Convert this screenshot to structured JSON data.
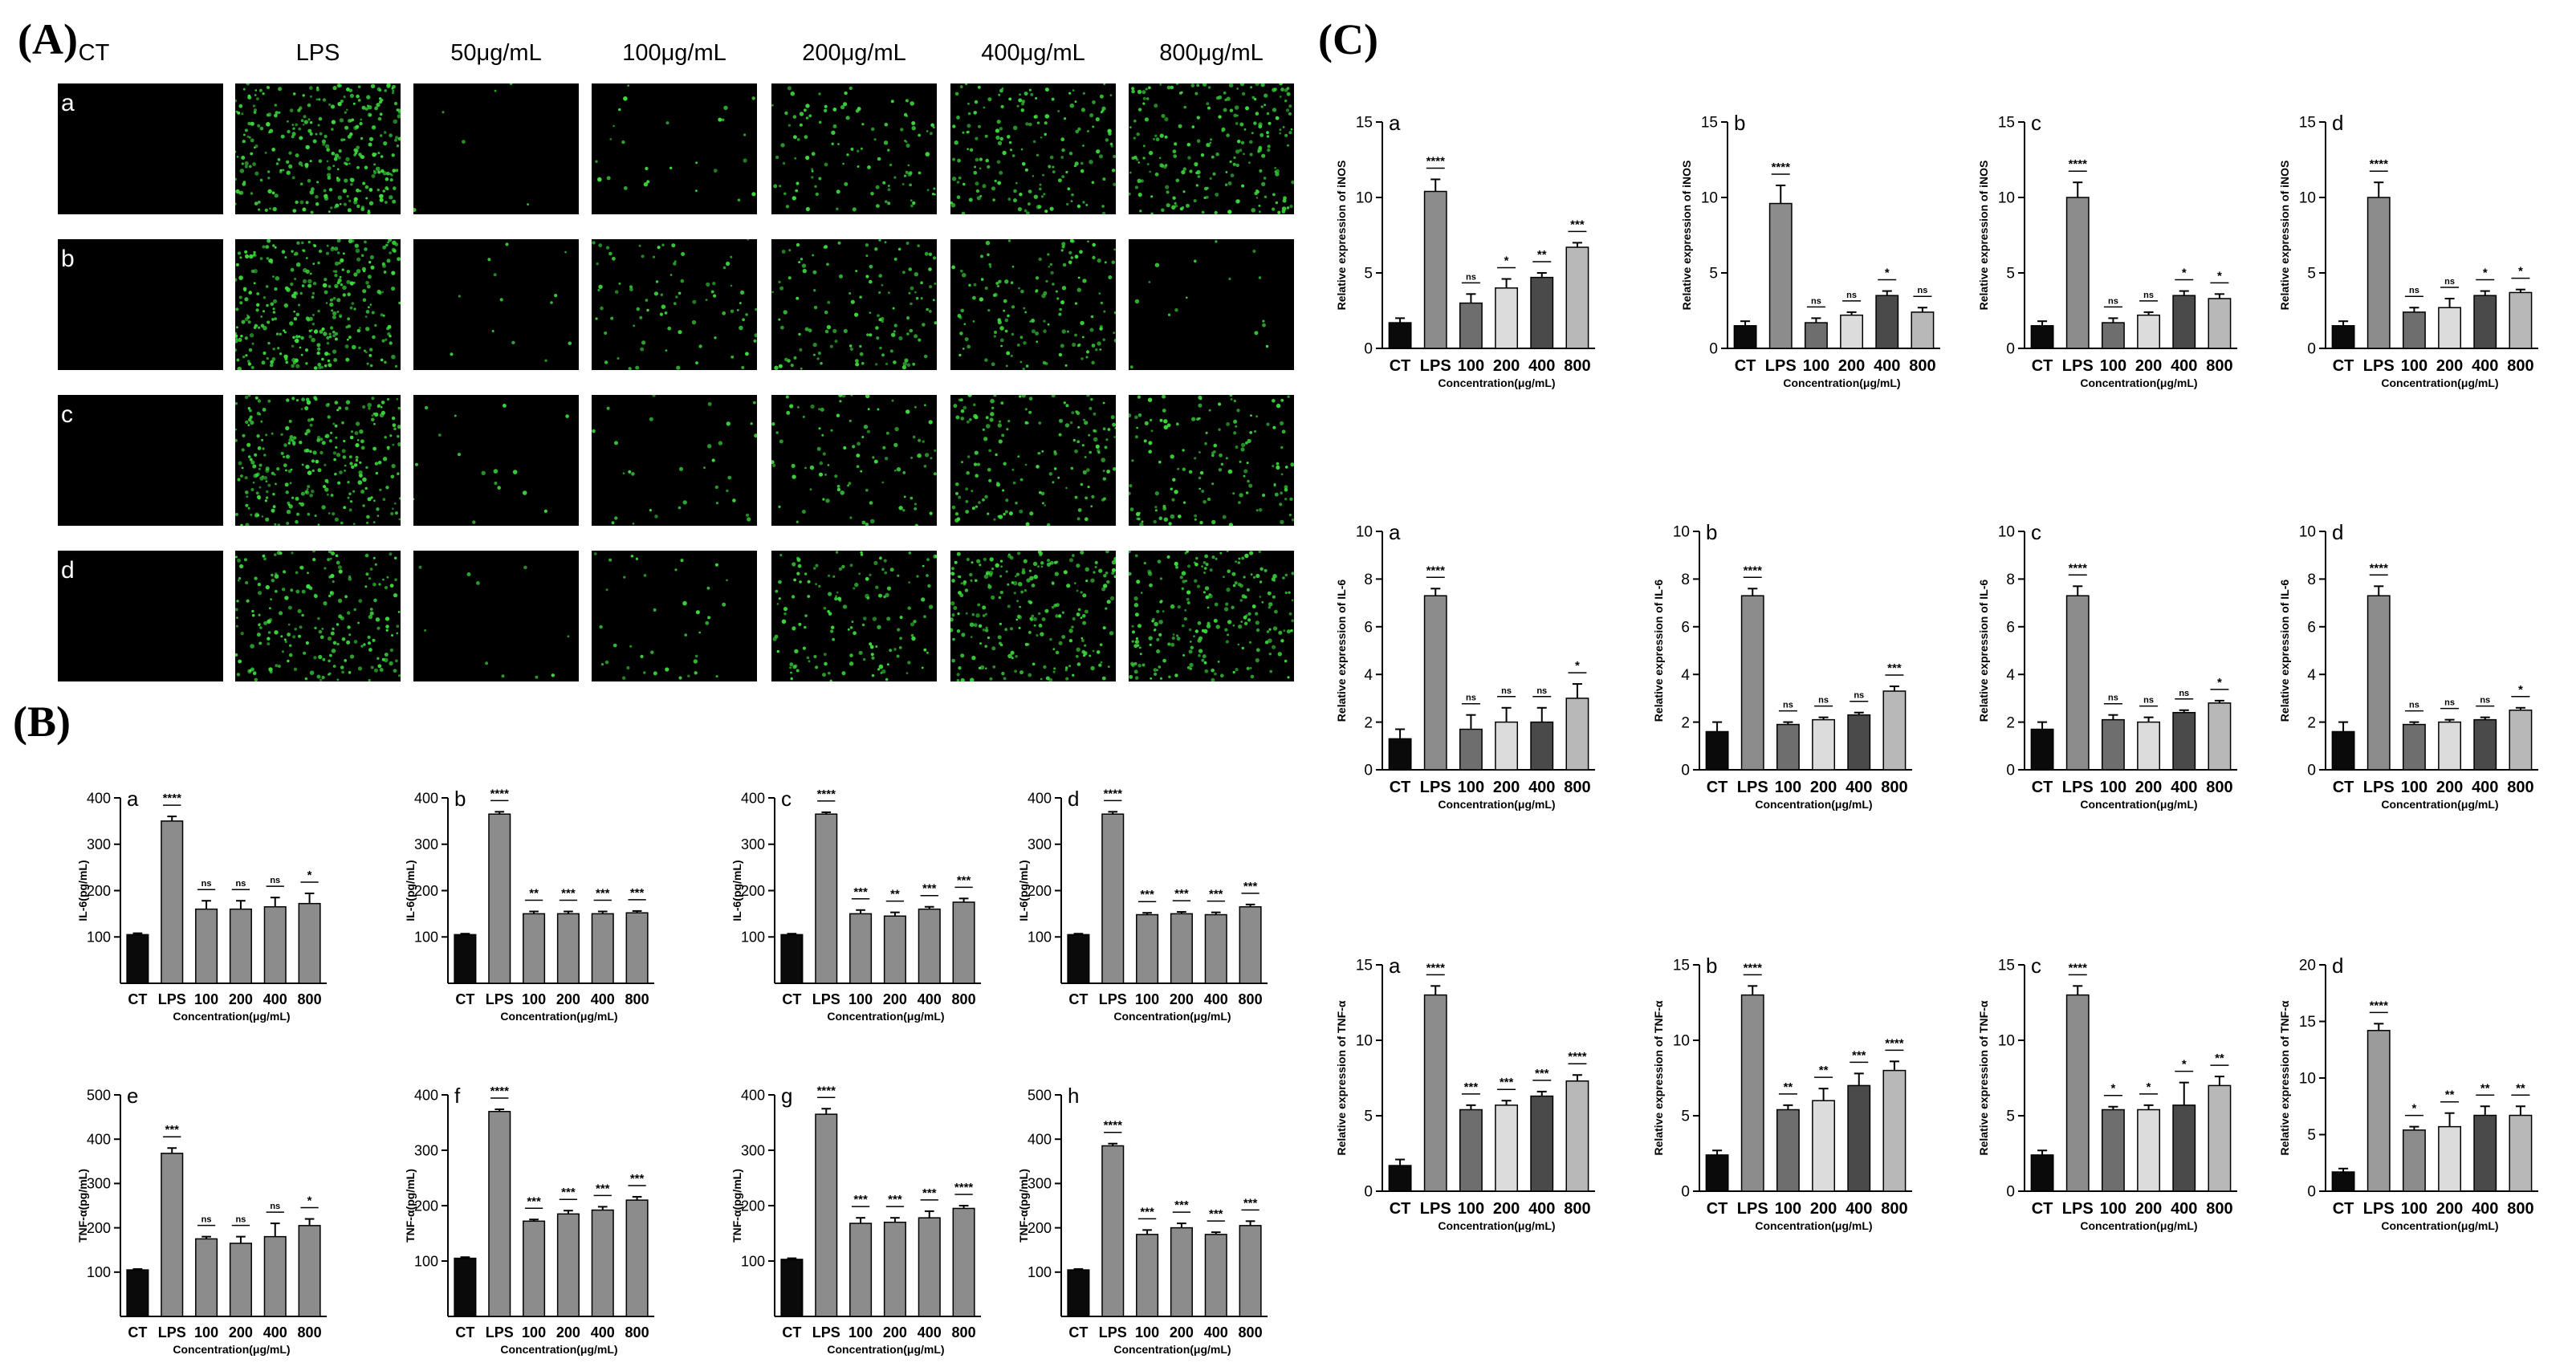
{
  "panels": {
    "A": "(A)",
    "B": "(B)",
    "C": "(C)"
  },
  "micrograph": {
    "columns": [
      "CT",
      "LPS",
      "50μg/mL",
      "100μg/mL",
      "200μg/mL",
      "400μg/mL",
      "800μg/mL"
    ],
    "rows": [
      "a",
      "b",
      "c",
      "d"
    ],
    "dot_color": "#3ddc3d",
    "tile_color": "#000000",
    "density": [
      [
        0,
        1.0,
        0.02,
        0.08,
        0.35,
        0.55,
        0.7
      ],
      [
        0,
        1.0,
        0.04,
        0.25,
        0.4,
        0.45,
        0.05
      ],
      [
        0,
        0.9,
        0.05,
        0.1,
        0.3,
        0.5,
        0.45
      ],
      [
        0,
        0.65,
        0.03,
        0.12,
        0.45,
        0.75,
        0.7
      ]
    ]
  },
  "categories": [
    "CT",
    "LPS",
    "100",
    "200",
    "400",
    "800"
  ],
  "bar_colors": {
    "black": "#0a0a0a",
    "dark": "#6e6e6e",
    "gray": "#8c8c8c",
    "mid": "#a6a6a6",
    "light": "#dcdcdc",
    "charcoal": "#4a4a4a",
    "steel": "#9b9b9b",
    "silver": "#b8b8b8"
  },
  "chart_data": [
    {
      "type": "bar",
      "panel": "B",
      "letter": "a",
      "ylabel": "IL-6(pg/mL)",
      "xlabel": "Concentration(μg/mL)",
      "ylim": [
        0,
        400
      ],
      "yticks": [
        100,
        200,
        300,
        400
      ],
      "values": [
        105,
        350,
        160,
        160,
        165,
        172
      ],
      "errors": [
        3,
        10,
        18,
        18,
        20,
        22
      ],
      "sig": [
        "",
        "****",
        "ns",
        "ns",
        "ns",
        "*"
      ],
      "colors": [
        "black",
        "gray",
        "gray",
        "gray",
        "gray",
        "gray"
      ]
    },
    {
      "type": "bar",
      "panel": "B",
      "letter": "b",
      "ylabel": "IL-6(pg/mL)",
      "xlabel": "Concentration(μg/mL)",
      "ylim": [
        0,
        400
      ],
      "yticks": [
        100,
        200,
        300,
        400
      ],
      "values": [
        105,
        365,
        150,
        150,
        150,
        152
      ],
      "errors": [
        2,
        5,
        5,
        5,
        5,
        4
      ],
      "sig": [
        "",
        "****",
        "**",
        "***",
        "***",
        "***"
      ],
      "colors": [
        "black",
        "gray",
        "gray",
        "gray",
        "gray",
        "gray"
      ]
    },
    {
      "type": "bar",
      "panel": "B",
      "letter": "c",
      "ylabel": "IL-6(pg/mL)",
      "xlabel": "Concentration(μg/mL)",
      "ylim": [
        0,
        400
      ],
      "yticks": [
        100,
        200,
        300,
        400
      ],
      "values": [
        105,
        365,
        150,
        145,
        160,
        175
      ],
      "errors": [
        2,
        4,
        8,
        8,
        5,
        8
      ],
      "sig": [
        "",
        "****",
        "***",
        "**",
        "***",
        "***"
      ],
      "colors": [
        "black",
        "gray",
        "gray",
        "gray",
        "gray",
        "gray"
      ]
    },
    {
      "type": "bar",
      "panel": "B",
      "letter": "d",
      "ylabel": "IL-6(pg/mL)",
      "xlabel": "Concentration(μg/mL)",
      "ylim": [
        0,
        400
      ],
      "yticks": [
        100,
        200,
        300,
        400
      ],
      "values": [
        105,
        365,
        148,
        150,
        148,
        165
      ],
      "errors": [
        2,
        5,
        4,
        4,
        5,
        5
      ],
      "sig": [
        "",
        "****",
        "***",
        "***",
        "***",
        "***"
      ],
      "colors": [
        "black",
        "gray",
        "gray",
        "gray",
        "gray",
        "gray"
      ]
    },
    {
      "type": "bar",
      "panel": "B",
      "letter": "e",
      "ylabel": "TNF-α(pg/mL)",
      "xlabel": "Concentration(μg/mL)",
      "ylim": [
        0,
        500
      ],
      "yticks": [
        100,
        200,
        300,
        400,
        500
      ],
      "values": [
        105,
        368,
        175,
        165,
        180,
        205
      ],
      "errors": [
        2,
        12,
        5,
        15,
        30,
        15
      ],
      "sig": [
        "",
        "***",
        "ns",
        "ns",
        "ns",
        "*"
      ],
      "colors": [
        "black",
        "gray",
        "gray",
        "gray",
        "gray",
        "gray"
      ]
    },
    {
      "type": "bar",
      "panel": "B",
      "letter": "f",
      "ylabel": "TNF-α(pg/mL)",
      "xlabel": "Concentration(μg/mL)",
      "ylim": [
        0,
        400
      ],
      "yticks": [
        100,
        200,
        300,
        400
      ],
      "values": [
        105,
        370,
        172,
        185,
        192,
        210
      ],
      "errors": [
        2,
        4,
        3,
        6,
        6,
        6
      ],
      "sig": [
        "",
        "****",
        "***",
        "***",
        "***",
        "***"
      ],
      "colors": [
        "black",
        "gray",
        "gray",
        "gray",
        "gray",
        "gray"
      ]
    },
    {
      "type": "bar",
      "panel": "B",
      "letter": "g",
      "ylabel": "TNF-α(pg/mL)",
      "xlabel": "Concentration(μg/mL)",
      "ylim": [
        0,
        400
      ],
      "yticks": [
        100,
        200,
        300,
        400
      ],
      "values": [
        103,
        365,
        168,
        170,
        178,
        195
      ],
      "errors": [
        2,
        10,
        10,
        8,
        12,
        5
      ],
      "sig": [
        "",
        "****",
        "***",
        "***",
        "***",
        "****"
      ],
      "colors": [
        "black",
        "gray",
        "gray",
        "gray",
        "gray",
        "gray"
      ]
    },
    {
      "type": "bar",
      "panel": "B",
      "letter": "h",
      "ylabel": "TNF-α(pg/mL)",
      "xlabel": "Concentration(μg/mL)",
      "ylim": [
        0,
        500
      ],
      "yticks": [
        100,
        200,
        300,
        400,
        500
      ],
      "values": [
        105,
        385,
        185,
        200,
        185,
        205
      ],
      "errors": [
        2,
        5,
        10,
        10,
        5,
        10
      ],
      "sig": [
        "",
        "****",
        "***",
        "***",
        "***",
        "***"
      ],
      "colors": [
        "black",
        "gray",
        "gray",
        "gray",
        "gray",
        "gray"
      ]
    },
    {
      "type": "bar",
      "panel": "C",
      "letter": "a",
      "ylabel": "Relative expression of iNOS",
      "xlabel": "Concentration(μg/mL)",
      "ylim": [
        0,
        15
      ],
      "yticks": [
        0,
        5,
        10,
        15
      ],
      "values": [
        1.7,
        10.4,
        3.0,
        4.0,
        4.7,
        6.7
      ],
      "errors": [
        0.3,
        0.8,
        0.6,
        0.6,
        0.3,
        0.3
      ],
      "sig": [
        "",
        "****",
        "ns",
        "*",
        "**",
        "***"
      ],
      "colors": [
        "black",
        "gray",
        "dark",
        "light",
        "charcoal",
        "silver"
      ]
    },
    {
      "type": "bar",
      "panel": "C",
      "letter": "b",
      "ylabel": "Relative expression of iNOS",
      "xlabel": "Concentration(μg/mL)",
      "ylim": [
        0,
        15
      ],
      "yticks": [
        0,
        5,
        10,
        15
      ],
      "values": [
        1.5,
        9.6,
        1.7,
        2.2,
        3.5,
        2.4
      ],
      "errors": [
        0.3,
        1.2,
        0.3,
        0.2,
        0.3,
        0.3
      ],
      "sig": [
        "",
        "****",
        "ns",
        "ns",
        "*",
        "ns"
      ],
      "colors": [
        "black",
        "gray",
        "dark",
        "light",
        "charcoal",
        "silver"
      ]
    },
    {
      "type": "bar",
      "panel": "C",
      "letter": "c",
      "ylabel": "Relative expression of iNOS",
      "xlabel": "Concentration(μg/mL)",
      "ylim": [
        0,
        15
      ],
      "yticks": [
        0,
        5,
        10,
        15
      ],
      "values": [
        1.5,
        10.0,
        1.7,
        2.2,
        3.5,
        3.3
      ],
      "errors": [
        0.3,
        1.0,
        0.3,
        0.2,
        0.3,
        0.3
      ],
      "sig": [
        "",
        "****",
        "ns",
        "ns",
        "*",
        "*"
      ],
      "colors": [
        "black",
        "gray",
        "dark",
        "light",
        "charcoal",
        "silver"
      ]
    },
    {
      "type": "bar",
      "panel": "C",
      "letter": "d",
      "ylabel": "Relative expression of iNOS",
      "xlabel": "Concentration(μg/mL)",
      "ylim": [
        0,
        15
      ],
      "yticks": [
        0,
        5,
        10,
        15
      ],
      "values": [
        1.5,
        10.0,
        2.4,
        2.7,
        3.5,
        3.7
      ],
      "errors": [
        0.3,
        1.0,
        0.3,
        0.6,
        0.3,
        0.2
      ],
      "sig": [
        "",
        "****",
        "ns",
        "ns",
        "*",
        "*"
      ],
      "colors": [
        "black",
        "gray",
        "dark",
        "light",
        "charcoal",
        "silver"
      ]
    },
    {
      "type": "bar",
      "panel": "C",
      "letter": "a",
      "ylabel": "Relative expression of IL-6",
      "xlabel": "Concentration(μg/mL)",
      "ylim": [
        0,
        10
      ],
      "yticks": [
        0,
        2,
        4,
        6,
        8,
        10
      ],
      "values": [
        1.3,
        7.3,
        1.7,
        2.0,
        2.0,
        3.0
      ],
      "errors": [
        0.4,
        0.3,
        0.6,
        0.6,
        0.6,
        0.6
      ],
      "sig": [
        "",
        "****",
        "ns",
        "ns",
        "ns",
        "*"
      ],
      "colors": [
        "black",
        "gray",
        "dark",
        "light",
        "charcoal",
        "silver"
      ]
    },
    {
      "type": "bar",
      "panel": "C",
      "letter": "b",
      "ylabel": "Relative expression of IL-6",
      "xlabel": "Concentration(μg/mL)",
      "ylim": [
        0,
        10
      ],
      "yticks": [
        0,
        2,
        4,
        6,
        8,
        10
      ],
      "values": [
        1.6,
        7.3,
        1.9,
        2.1,
        2.3,
        3.3
      ],
      "errors": [
        0.4,
        0.3,
        0.1,
        0.1,
        0.1,
        0.2
      ],
      "sig": [
        "",
        "****",
        "ns",
        "ns",
        "ns",
        "***"
      ],
      "colors": [
        "black",
        "gray",
        "dark",
        "light",
        "charcoal",
        "silver"
      ]
    },
    {
      "type": "bar",
      "panel": "C",
      "letter": "c",
      "ylabel": "Relative expression of IL-6",
      "xlabel": "Concentration(μg/mL)",
      "ylim": [
        0,
        10
      ],
      "yticks": [
        0,
        2,
        4,
        6,
        8,
        10
      ],
      "values": [
        1.7,
        7.3,
        2.1,
        2.0,
        2.4,
        2.8
      ],
      "errors": [
        0.3,
        0.4,
        0.2,
        0.2,
        0.1,
        0.1
      ],
      "sig": [
        "",
        "****",
        "ns",
        "ns",
        "ns",
        "*"
      ],
      "colors": [
        "black",
        "gray",
        "dark",
        "light",
        "charcoal",
        "silver"
      ]
    },
    {
      "type": "bar",
      "panel": "C",
      "letter": "d",
      "ylabel": "Relative expression of IL-6",
      "xlabel": "Concentration(μg/mL)",
      "ylim": [
        0,
        10
      ],
      "yticks": [
        0,
        2,
        4,
        6,
        8,
        10
      ],
      "values": [
        1.6,
        7.3,
        1.9,
        2.0,
        2.1,
        2.5
      ],
      "errors": [
        0.4,
        0.4,
        0.1,
        0.1,
        0.1,
        0.1
      ],
      "sig": [
        "",
        "****",
        "ns",
        "ns",
        "ns",
        "*"
      ],
      "colors": [
        "black",
        "gray",
        "dark",
        "light",
        "charcoal",
        "silver"
      ]
    },
    {
      "type": "bar",
      "panel": "C",
      "letter": "a",
      "ylabel": "Relative expression of TNF-α",
      "xlabel": "Concentration(μg/mL)",
      "ylim": [
        0,
        15
      ],
      "yticks": [
        0,
        5,
        10,
        15
      ],
      "values": [
        1.7,
        13.0,
        5.4,
        5.7,
        6.3,
        7.3
      ],
      "errors": [
        0.4,
        0.6,
        0.3,
        0.3,
        0.3,
        0.4
      ],
      "sig": [
        "",
        "****",
        "***",
        "***",
        "***",
        "****"
      ],
      "colors": [
        "black",
        "gray",
        "dark",
        "light",
        "charcoal",
        "silver"
      ]
    },
    {
      "type": "bar",
      "panel": "C",
      "letter": "b",
      "ylabel": "Relative expression of TNF-α",
      "xlabel": "Concentration(μg/mL)",
      "ylim": [
        0,
        15
      ],
      "yticks": [
        0,
        5,
        10,
        15
      ],
      "values": [
        2.4,
        13.0,
        5.4,
        6.0,
        7.0,
        8.0
      ],
      "errors": [
        0.3,
        0.6,
        0.3,
        0.8,
        0.8,
        0.6
      ],
      "sig": [
        "",
        "****",
        "**",
        "**",
        "***",
        "****"
      ],
      "colors": [
        "black",
        "gray",
        "dark",
        "light",
        "charcoal",
        "silver"
      ]
    },
    {
      "type": "bar",
      "panel": "C",
      "letter": "c",
      "ylabel": "Relative expression of TNF-α",
      "xlabel": "Concentration(μg/mL)",
      "ylim": [
        0,
        15
      ],
      "yticks": [
        0,
        5,
        10,
        15
      ],
      "values": [
        2.4,
        13.0,
        5.4,
        5.4,
        5.7,
        7.0
      ],
      "errors": [
        0.3,
        0.6,
        0.2,
        0.3,
        1.5,
        0.6
      ],
      "sig": [
        "",
        "****",
        "*",
        "*",
        "*",
        "**"
      ],
      "colors": [
        "black",
        "gray",
        "dark",
        "light",
        "charcoal",
        "silver"
      ]
    },
    {
      "type": "bar",
      "panel": "C",
      "letter": "d",
      "ylabel": "Relative expression of TNF-α",
      "xlabel": "Concentration(μg/mL)",
      "ylim": [
        0,
        20
      ],
      "yticks": [
        0,
        5,
        10,
        15,
        20
      ],
      "values": [
        1.7,
        14.2,
        5.4,
        5.7,
        6.7,
        6.7
      ],
      "errors": [
        0.3,
        0.6,
        0.3,
        1.2,
        0.8,
        0.8
      ],
      "sig": [
        "",
        "****",
        "*",
        "**",
        "**",
        "**"
      ],
      "colors": [
        "black",
        "steel",
        "gray",
        "light",
        "charcoal",
        "silver"
      ]
    }
  ]
}
